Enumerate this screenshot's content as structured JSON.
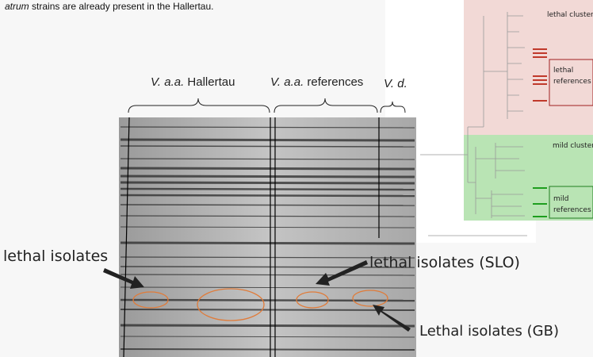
{
  "intro": {
    "italic": "atrum",
    "rest": " strains are already present in the Hallertau."
  },
  "gel": {
    "groups": [
      {
        "italic": "V. a.a.",
        "rest": " Hallertau"
      },
      {
        "italic": "V. a.a.",
        "rest": " references"
      },
      {
        "italic": "V. d."
      }
    ],
    "annotations": [
      "lethal isolates",
      "lethal isolates  (SLO)",
      "Lethal isolates (GB)"
    ]
  },
  "dendrogram": {
    "lethal_cluster": "lethal cluster",
    "lethal_references": [
      "lethal",
      "references"
    ],
    "mild_cluster": "mild cluster",
    "mild_references": [
      "mild",
      "references"
    ]
  }
}
